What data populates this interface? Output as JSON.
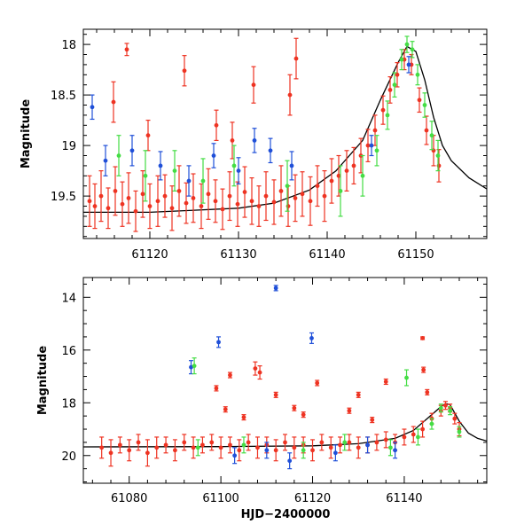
{
  "chart_data": [
    {
      "type": "scatter",
      "panel": "top",
      "title": "",
      "xlabel": "",
      "ylabel": "Magnitude",
      "xlim": [
        61112.5,
        61158
      ],
      "ylim": [
        19.92,
        17.85
      ],
      "y_inverted": true,
      "xticks": [
        61120,
        61130,
        61140,
        61150
      ],
      "yticks": [
        18,
        18.5,
        19,
        19.5
      ],
      "model_curve": {
        "style": "solid-black",
        "x": [
          61112.5,
          61120,
          61125,
          61130,
          61134,
          61138,
          61141,
          61144,
          61146,
          61148,
          61149,
          61150,
          61151,
          61152,
          61153,
          61154,
          61156,
          61158
        ],
        "y": [
          19.66,
          19.66,
          19.64,
          19.62,
          19.57,
          19.44,
          19.25,
          18.95,
          18.55,
          18.18,
          18.02,
          18.07,
          18.35,
          18.72,
          19.0,
          19.15,
          19.32,
          19.43
        ]
      },
      "series": [
        {
          "name": "red",
          "color": "#ee3322",
          "x": [
            61113.2,
            61113.8,
            61114.5,
            61115.3,
            61116.1,
            61116.9,
            61117.6,
            61118.4,
            61119.2,
            61120.0,
            61120.9,
            61121.7,
            61122.5,
            61123.3,
            61124.1,
            61124.9,
            61125.8,
            61126.6,
            61127.4,
            61128.2,
            61129.0,
            61129.9,
            61130.7,
            61131.5,
            61132.3,
            61133.1,
            61134.0,
            61134.8,
            61135.6,
            61136.4,
            61137.2,
            61138.1,
            61138.9,
            61139.7,
            61140.5,
            61141.3,
            61142.2,
            61143.0,
            61143.8,
            61144.6,
            61145.4,
            61146.3,
            61147.1,
            61147.9,
            61148.7,
            61149.5,
            61150.4,
            61151.2,
            61152.0,
            61152.6,
            61117.4,
            61115.9,
            61123.9,
            61127.5,
            61136.5,
            61131.7,
            61119.8,
            61135.8,
            61129.3
          ],
          "y": [
            19.55,
            19.6,
            19.5,
            19.62,
            19.45,
            19.58,
            19.52,
            19.65,
            19.48,
            19.6,
            19.55,
            19.5,
            19.62,
            19.45,
            19.57,
            19.52,
            19.6,
            19.48,
            19.55,
            19.63,
            19.5,
            19.58,
            19.46,
            19.55,
            19.6,
            19.5,
            19.56,
            19.45,
            19.6,
            19.52,
            19.48,
            19.55,
            19.4,
            19.5,
            19.35,
            19.3,
            19.25,
            19.2,
            19.1,
            19.0,
            18.85,
            18.65,
            18.45,
            18.3,
            18.15,
            18.2,
            18.55,
            18.85,
            19.05,
            19.2,
            18.05,
            18.57,
            18.26,
            18.8,
            18.14,
            18.4,
            18.9,
            18.5,
            18.95
          ],
          "err": [
            0.25,
            0.22,
            0.25,
            0.2,
            0.24,
            0.22,
            0.25,
            0.2,
            0.23,
            0.22,
            0.25,
            0.21,
            0.22,
            0.25,
            0.2,
            0.24,
            0.22,
            0.25,
            0.21,
            0.2,
            0.24,
            0.22,
            0.25,
            0.23,
            0.2,
            0.24,
            0.22,
            0.25,
            0.2,
            0.23,
            0.22,
            0.24,
            0.2,
            0.25,
            0.22,
            0.2,
            0.2,
            0.18,
            0.17,
            0.16,
            0.15,
            0.14,
            0.13,
            0.12,
            0.1,
            0.1,
            0.12,
            0.14,
            0.15,
            0.16,
            0.06,
            0.2,
            0.15,
            0.15,
            0.2,
            0.18,
            0.15,
            0.2,
            0.18
          ]
        },
        {
          "name": "blue",
          "color": "#1f4fd8",
          "x": [
            61113.5,
            61115.0,
            61118.0,
            61121.2,
            61124.4,
            61127.2,
            61130.0,
            61131.8,
            61133.6,
            61136.0,
            61145.0,
            61149.2
          ],
          "y": [
            18.62,
            19.15,
            19.05,
            19.2,
            19.35,
            19.1,
            19.25,
            18.95,
            19.05,
            19.2,
            19.0,
            18.2
          ],
          "err": [
            0.12,
            0.15,
            0.15,
            0.14,
            0.15,
            0.12,
            0.13,
            0.12,
            0.12,
            0.14,
            0.1,
            0.08
          ]
        },
        {
          "name": "green",
          "color": "#44dd44",
          "x": [
            61116.5,
            61119.5,
            61122.8,
            61126.0,
            61129.5,
            61135.5,
            61141.5,
            61144.0,
            61145.6,
            61146.8,
            61147.6,
            61148.4,
            61149.0,
            61149.6,
            61150.2,
            61151.0,
            61151.8,
            61152.5
          ],
          "y": [
            19.1,
            19.3,
            19.25,
            19.35,
            19.2,
            19.4,
            19.45,
            19.3,
            19.05,
            18.7,
            18.4,
            18.15,
            18.0,
            18.05,
            18.3,
            18.6,
            18.9,
            19.1
          ],
          "err": [
            0.2,
            0.25,
            0.2,
            0.22,
            0.2,
            0.25,
            0.25,
            0.2,
            0.15,
            0.14,
            0.12,
            0.1,
            0.08,
            0.08,
            0.1,
            0.12,
            0.14,
            0.15
          ]
        }
      ]
    },
    {
      "type": "scatter",
      "panel": "bottom",
      "title": "",
      "xlabel": "HJD−2400000",
      "ylabel": "Magnitude",
      "xlim": [
        61070,
        61158
      ],
      "ylim": [
        21.05,
        13.25
      ],
      "y_inverted": true,
      "xticks": [
        61080,
        61100,
        61120,
        61140
      ],
      "yticks": [
        14,
        16,
        18,
        20
      ],
      "model_curve": {
        "style": "solid-black",
        "x": [
          61070,
          61100,
          61120,
          61130,
          61138,
          61142,
          61145,
          61148,
          61149,
          61150,
          61152,
          61154,
          61156,
          61158
        ],
        "y": [
          19.67,
          19.66,
          19.63,
          19.55,
          19.35,
          19.05,
          18.6,
          18.15,
          18.03,
          18.07,
          18.7,
          19.15,
          19.35,
          19.45
        ]
      },
      "series": [
        {
          "name": "red",
          "color": "#ee3322",
          "x": [
            61074,
            61076,
            61078,
            61080,
            61082,
            61084,
            61086,
            61088,
            61090,
            61092,
            61094,
            61096,
            61098,
            61100,
            61102,
            61104,
            61106,
            61108,
            61110,
            61112,
            61114,
            61116,
            61118,
            61120,
            61122,
            61124,
            61126,
            61128,
            61130,
            61132,
            61134,
            61136,
            61138,
            61140,
            61142,
            61144,
            61146,
            61148,
            61149,
            61150,
            61151,
            61152,
            61099,
            61102,
            61107.5,
            61108.5,
            61112,
            61116,
            61121,
            61130,
            61136,
            61144,
            61144.2,
            61145,
            61101,
            61105,
            61118,
            61128,
            61133
          ],
          "y": [
            19.7,
            19.9,
            19.6,
            19.8,
            19.5,
            19.9,
            19.7,
            19.6,
            19.8,
            19.5,
            19.7,
            19.6,
            19.5,
            19.7,
            19.6,
            19.8,
            19.5,
            19.7,
            19.6,
            19.8,
            19.5,
            19.7,
            19.6,
            19.8,
            19.5,
            19.7,
            19.6,
            19.5,
            19.7,
            19.6,
            19.5,
            19.4,
            19.5,
            19.3,
            19.2,
            19.0,
            18.6,
            18.3,
            18.1,
            18.2,
            18.6,
            19.0,
            17.45,
            16.95,
            16.7,
            16.85,
            17.7,
            18.2,
            17.25,
            17.7,
            17.2,
            15.55,
            16.75,
            17.6,
            18.25,
            18.55,
            18.45,
            18.3,
            18.65
          ],
          "err": [
            0.4,
            0.5,
            0.3,
            0.4,
            0.3,
            0.5,
            0.4,
            0.3,
            0.4,
            0.3,
            0.4,
            0.3,
            0.3,
            0.4,
            0.3,
            0.4,
            0.3,
            0.4,
            0.3,
            0.4,
            0.3,
            0.4,
            0.3,
            0.4,
            0.3,
            0.4,
            0.3,
            0.3,
            0.4,
            0.3,
            0.3,
            0.3,
            0.3,
            0.3,
            0.3,
            0.3,
            0.2,
            0.2,
            0.15,
            0.15,
            0.2,
            0.25,
            0.1,
            0.1,
            0.25,
            0.25,
            0.1,
            0.1,
            0.1,
            0.1,
            0.1,
            0.05,
            0.1,
            0.1,
            0.1,
            0.1,
            0.1,
            0.1,
            0.1
          ]
        },
        {
          "name": "blue",
          "color": "#1f4fd8",
          "x": [
            61093.5,
            61099.5,
            61112,
            61119.8,
            61103,
            61110,
            61115,
            61125,
            61132,
            61138
          ],
          "y": [
            16.65,
            15.7,
            13.65,
            15.55,
            20.0,
            19.8,
            20.2,
            19.9,
            19.6,
            19.8
          ],
          "err": [
            0.25,
            0.2,
            0.1,
            0.2,
            0.3,
            0.3,
            0.3,
            0.3,
            0.3,
            0.3
          ]
        },
        {
          "name": "green",
          "color": "#44dd44",
          "x": [
            61094.2,
            61140.5,
            61095,
            61105,
            61118,
            61127,
            61137,
            61143,
            61146,
            61148,
            61150,
            61152
          ],
          "y": [
            16.6,
            17.05,
            19.7,
            19.6,
            19.8,
            19.5,
            19.7,
            19.3,
            18.8,
            18.2,
            18.3,
            19.1
          ],
          "err": [
            0.3,
            0.3,
            0.3,
            0.3,
            0.3,
            0.3,
            0.3,
            0.3,
            0.2,
            0.15,
            0.15,
            0.2
          ]
        }
      ]
    }
  ]
}
